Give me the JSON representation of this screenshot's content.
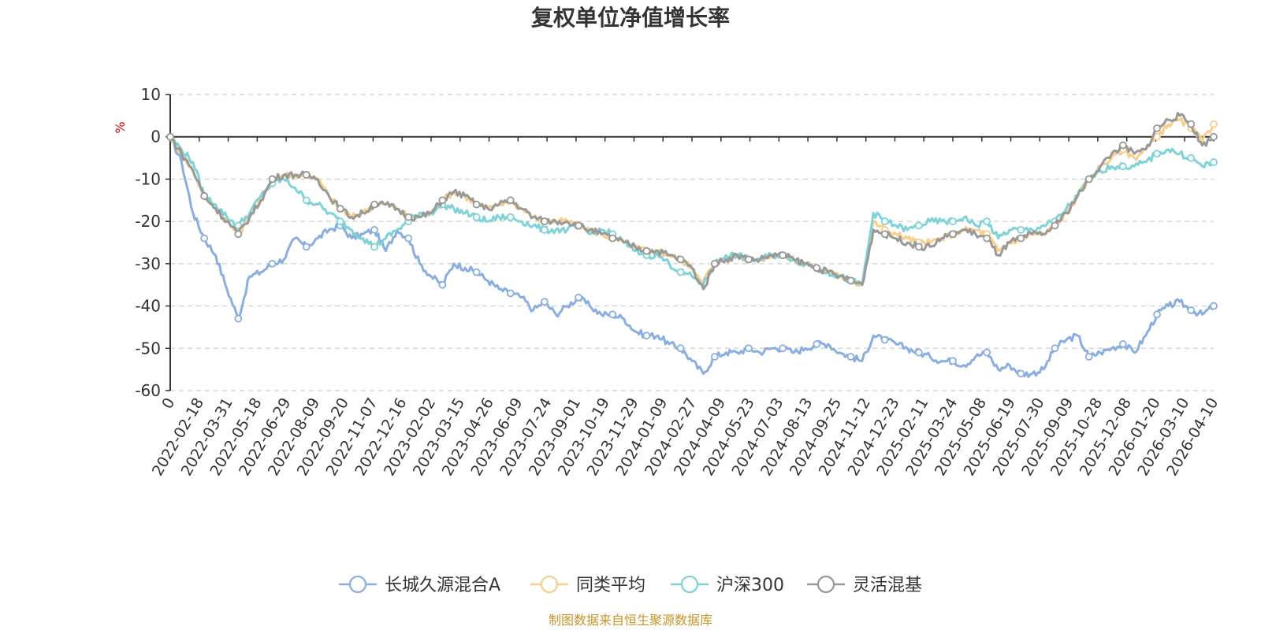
{
  "chart_data": {
    "type": "line",
    "title": "复权单位净值增长率",
    "ylabel": "%",
    "xlabel": "",
    "ylim": [
      -60,
      10
    ],
    "yticks": [
      10,
      0,
      -10,
      -20,
      -30,
      -40,
      -50,
      -60
    ],
    "grid": true,
    "legend_position": "bottom-center",
    "source": "制图数据来自恒生聚源数据库",
    "x_ticks": [
      "0",
      "2022-02-18",
      "2022-03-31",
      "2022-05-18",
      "2022-06-29",
      "2022-08-09",
      "2022-09-20",
      "2022-11-07",
      "2022-12-16",
      "2023-02-02",
      "2023-03-15",
      "2023-04-26",
      "2023-06-09",
      "2023-07-24",
      "2023-09-01",
      "2023-10-19",
      "2023-11-29",
      "2024-01-09",
      "2024-02-27",
      "2024-04-09",
      "2024-05-23",
      "2024-07-03",
      "2024-08-13",
      "2024-09-25",
      "2024-11-12",
      "2024-12-23",
      "2025-02-11",
      "2025-03-24",
      "2025-05-08",
      "2025-06-19",
      "2025-07-30",
      "2025-09-09",
      "2025-10-28",
      "2025-12-08",
      "2026-01-20",
      "2026-03-10",
      "2026-04-10"
    ],
    "series": [
      {
        "name": "长城久源混合A",
        "color": "#8aaee0",
        "values": [
          0,
          -6,
          -18,
          -24,
          -28,
          -36,
          -43,
          -33,
          -32,
          -30,
          -29,
          -24,
          -26,
          -24,
          -22,
          -21,
          -24,
          -23,
          -22,
          -27,
          -22,
          -24,
          -30,
          -33,
          -35,
          -30,
          -31,
          -32,
          -34,
          -36,
          -37,
          -38,
          -41,
          -39,
          -42,
          -40,
          -38,
          -40,
          -42,
          -42,
          -43,
          -46,
          -47,
          -47,
          -49,
          -50,
          -53,
          -56,
          -52,
          -51,
          -51,
          -50,
          -51,
          -50,
          -50,
          -51,
          -50,
          -49,
          -49,
          -51,
          -52,
          -53,
          -47,
          -48,
          -49,
          -50,
          -51,
          -52,
          -53,
          -53,
          -54,
          -52,
          -51,
          -55,
          -54,
          -56,
          -56,
          -55,
          -50,
          -48,
          -47,
          -52,
          -51,
          -50,
          -49,
          -51,
          -47,
          -42,
          -40,
          -39,
          -41,
          -42,
          -40
        ]
      },
      {
        "name": "同类平均",
        "color": "#f7cf8a",
        "values": [
          0,
          -4,
          -8,
          -14,
          -17,
          -20,
          -23,
          -19,
          -15,
          -10,
          -9,
          -9,
          -9,
          -10,
          -14,
          -17,
          -19,
          -18,
          -16,
          -16,
          -17,
          -19,
          -19,
          -18,
          -15,
          -13,
          -14,
          -16,
          -17,
          -16,
          -15,
          -17,
          -19,
          -20,
          -20,
          -20,
          -21,
          -22,
          -23,
          -24,
          -25,
          -26,
          -27,
          -27,
          -28,
          -29,
          -31,
          -34,
          -30,
          -29,
          -28,
          -29,
          -29,
          -28,
          -28,
          -29,
          -30,
          -31,
          -32,
          -33,
          -34,
          -35,
          -20,
          -22,
          -23,
          -24,
          -25,
          -25,
          -24,
          -23,
          -22,
          -22,
          -23,
          -27,
          -25,
          -24,
          -23,
          -23,
          -21,
          -18,
          -14,
          -10,
          -7,
          -5,
          -3,
          -5,
          -3,
          0,
          3,
          4,
          2,
          -1,
          3
        ]
      },
      {
        "name": "沪深300",
        "color": "#7fd3d6",
        "values": [
          0,
          -3,
          -6,
          -14,
          -16,
          -19,
          -21,
          -18,
          -14,
          -11,
          -10,
          -12,
          -15,
          -16,
          -18,
          -20,
          -22,
          -24,
          -26,
          -24,
          -22,
          -20,
          -18,
          -18,
          -16,
          -17,
          -18,
          -19,
          -20,
          -19,
          -19,
          -20,
          -21,
          -22,
          -22,
          -22,
          -21,
          -23,
          -22,
          -23,
          -25,
          -27,
          -28,
          -28,
          -30,
          -32,
          -33,
          -35,
          -30,
          -28,
          -28,
          -29,
          -29,
          -28,
          -28,
          -29,
          -30,
          -31,
          -32,
          -33,
          -34,
          -35,
          -18,
          -20,
          -21,
          -22,
          -21,
          -20,
          -20,
          -20,
          -19,
          -21,
          -20,
          -24,
          -22,
          -22,
          -22,
          -21,
          -20,
          -17,
          -14,
          -10,
          -8,
          -7,
          -7,
          -7,
          -6,
          -4,
          -3,
          -4,
          -5,
          -7,
          -6
        ]
      },
      {
        "name": "灵活混基",
        "color": "#999999",
        "values": [
          0,
          -4,
          -8,
          -14,
          -17,
          -20,
          -23,
          -19,
          -15,
          -10,
          -9,
          -9,
          -9,
          -10,
          -14,
          -17,
          -19,
          -18,
          -16,
          -16,
          -17,
          -19,
          -19,
          -18,
          -15,
          -13,
          -14,
          -16,
          -17,
          -16,
          -15,
          -17,
          -19,
          -20,
          -20,
          -20,
          -21,
          -22,
          -23,
          -24,
          -25,
          -26,
          -27,
          -27,
          -28,
          -29,
          -31,
          -36,
          -30,
          -29,
          -28,
          -29,
          -29,
          -28,
          -28,
          -29,
          -30,
          -31,
          -32,
          -33,
          -34,
          -35,
          -22,
          -23,
          -24,
          -25,
          -26,
          -26,
          -24,
          -23,
          -22,
          -23,
          -24,
          -28,
          -25,
          -24,
          -23,
          -23,
          -21,
          -18,
          -14,
          -10,
          -7,
          -4,
          -2,
          -4,
          -3,
          2,
          4,
          5,
          3,
          -2,
          0
        ]
      }
    ]
  }
}
